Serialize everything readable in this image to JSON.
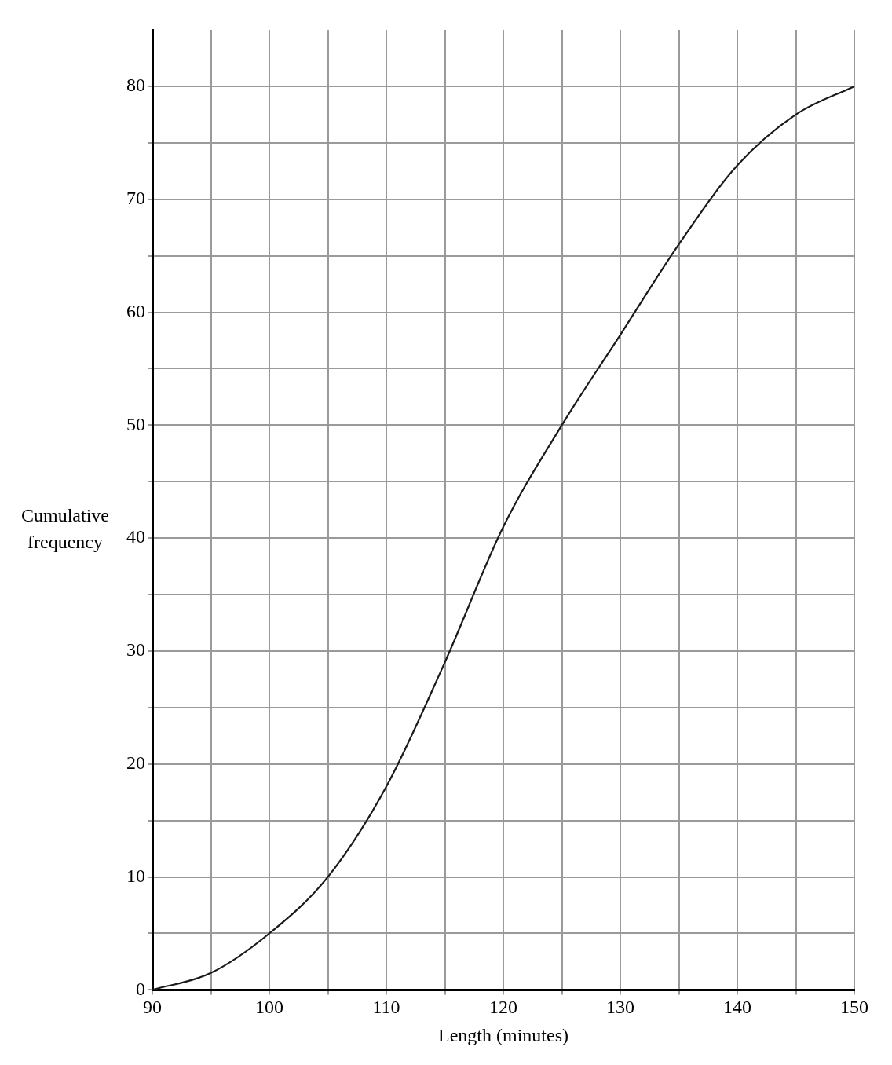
{
  "chart_data": {
    "type": "line",
    "xlabel": "Length (minutes)",
    "ylabel": "Cumulative frequency",
    "x": [
      90,
      95,
      100,
      105,
      110,
      115,
      120,
      125,
      130,
      135,
      140,
      145,
      150
    ],
    "series": [
      {
        "color": "#1a1a1a",
        "values": [
          0,
          1.5,
          5,
          10,
          18,
          29,
          41,
          50,
          58,
          66,
          73,
          77.5,
          80
        ]
      }
    ],
    "xlim": [
      90,
      150
    ],
    "xticks": [
      90,
      {
        "value": 95,
        "label": null
      },
      100,
      {
        "value": 105,
        "label": null
      },
      110,
      {
        "value": 115,
        "label": null
      },
      120,
      {
        "value": 125,
        "label": null
      },
      130,
      {
        "value": 135,
        "label": null
      },
      140,
      {
        "value": 145,
        "label": null
      },
      150
    ],
    "ylim": [
      0,
      85
    ],
    "yticks": [
      0,
      {
        "value": 5,
        "label": null
      },
      10,
      {
        "value": 15,
        "label": null
      },
      20,
      {
        "value": 25,
        "label": null
      },
      30,
      {
        "value": 35,
        "label": null
      },
      40,
      {
        "value": 45,
        "label": null
      },
      50,
      {
        "value": 55,
        "label": null
      },
      60,
      {
        "value": 65,
        "label": null
      },
      70,
      {
        "value": 75,
        "label": null
      },
      80
    ],
    "grid": true,
    "legend": false,
    "marker": "none",
    "line_style": "solid"
  }
}
